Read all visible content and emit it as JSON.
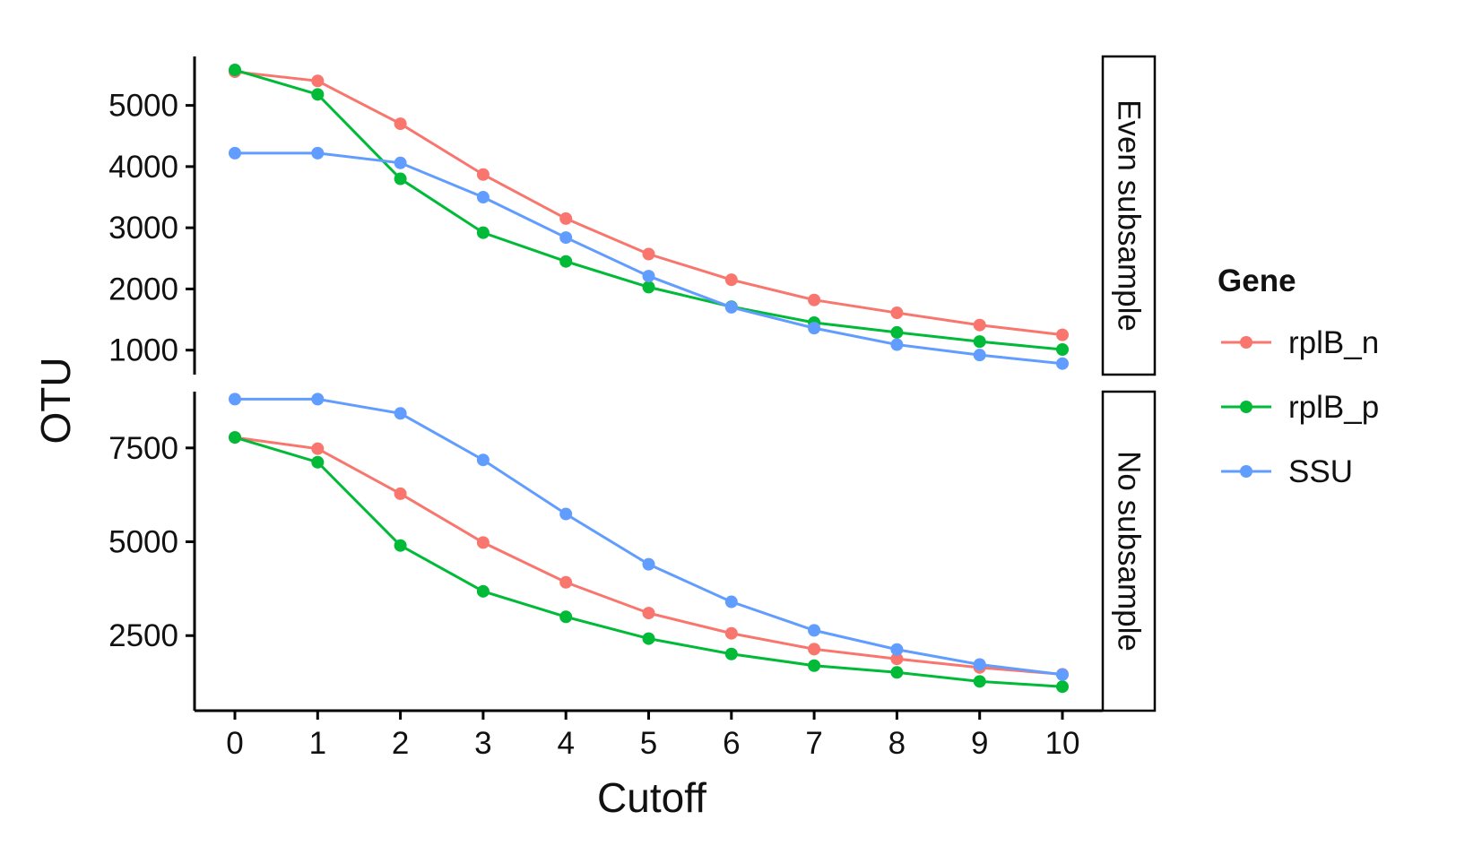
{
  "chart_data": {
    "type": "line",
    "xlabel": "Cutoff",
    "ylabel": "OTU",
    "x": [
      0,
      1,
      2,
      3,
      4,
      5,
      6,
      7,
      8,
      9,
      10
    ],
    "xticks": [
      "0",
      "1",
      "2",
      "3",
      "4",
      "5",
      "6",
      "7",
      "8",
      "9",
      "10"
    ],
    "legend": {
      "title": "Gene",
      "placement": "right"
    },
    "colors": {
      "rplB_n": "#F8766D",
      "rplB_p": "#00BA38",
      "SSU": "#619CFF"
    },
    "grid": false,
    "panels": [
      {
        "strip": "Even subsample",
        "ylim": [
          600,
          5800
        ],
        "yticks": [
          1000,
          2000,
          3000,
          4000,
          5000
        ],
        "ytick_labels": [
          "1000",
          "2000",
          "3000",
          "4000",
          "5000"
        ],
        "series": [
          {
            "name": "rplB_n",
            "values": [
              5550,
              5400,
              4700,
              3870,
              3150,
              2570,
              2150,
              1820,
              1610,
              1410,
              1250
            ]
          },
          {
            "name": "rplB_p",
            "values": [
              5580,
              5180,
              3800,
              2920,
              2450,
              2030,
              1710,
              1450,
              1290,
              1140,
              1010
            ]
          },
          {
            "name": "SSU",
            "values": [
              4220,
              4220,
              4060,
              3500,
              2840,
              2210,
              1700,
              1360,
              1090,
              920,
              780
            ]
          }
        ]
      },
      {
        "strip": "No subsample",
        "ylim": [
          500,
          9000
        ],
        "yticks": [
          2500,
          5000,
          7500
        ],
        "ytick_labels": [
          "2500",
          "5000",
          "7500"
        ],
        "series": [
          {
            "name": "rplB_n",
            "values": [
              7780,
              7480,
              6280,
              4980,
              3920,
              3100,
              2560,
              2140,
              1880,
              1650,
              1470
            ]
          },
          {
            "name": "rplB_p",
            "values": [
              7780,
              7120,
              4900,
              3680,
              3000,
              2420,
              2010,
              1700,
              1520,
              1280,
              1140
            ]
          },
          {
            "name": "SSU",
            "values": [
              8800,
              8800,
              8420,
              7180,
              5740,
              4400,
              3400,
              2640,
              2130,
              1730,
              1460
            ]
          }
        ]
      }
    ]
  }
}
